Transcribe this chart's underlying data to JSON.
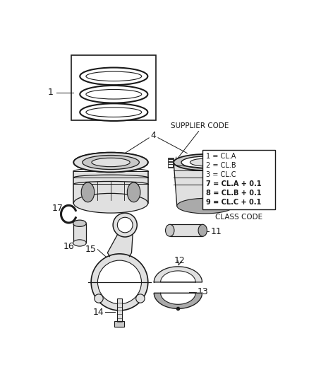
{
  "bg_color": "#ffffff",
  "dark": "#1a1a1a",
  "gray1": "#c8c8c8",
  "gray2": "#e0e0e0",
  "gray3": "#aaaaaa",
  "legend_lines": [
    "1 = CL.A",
    "2 = CL.B",
    "3 = CL.C",
    "7 = CL.A + 0.1",
    "8 = CL.B + 0.1",
    "9 = CL.C + 0.1"
  ],
  "legend_title": "CLASS CODE",
  "supplier_code_label": "SUPPLIER CODE",
  "fig_width": 4.38,
  "fig_height": 5.33,
  "dpi": 100
}
